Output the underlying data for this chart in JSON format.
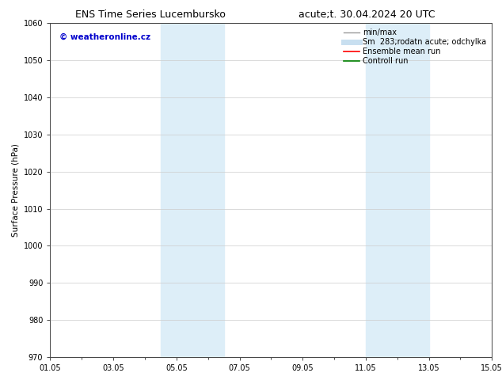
{
  "title_left": "ENS Time Series Lucembursko",
  "title_right": "acute;t. 30.04.2024 20 UTC",
  "ylabel": "Surface Pressure (hPa)",
  "ylim": [
    970,
    1060
  ],
  "yticks": [
    970,
    980,
    990,
    1000,
    1010,
    1020,
    1030,
    1040,
    1050,
    1060
  ],
  "xlim_start": 0.0,
  "xlim_end": 14.0,
  "xtick_positions": [
    0,
    2,
    4,
    6,
    8,
    10,
    12,
    14
  ],
  "xtick_labels": [
    "01.05",
    "03.05",
    "05.05",
    "07.05",
    "09.05",
    "11.05",
    "13.05",
    "15.05"
  ],
  "shaded_bands": [
    {
      "x_start": 3.5,
      "x_end": 5.5
    },
    {
      "x_start": 10.0,
      "x_end": 12.0
    }
  ],
  "shade_color": "#ddeef8",
  "watermark_text": "© weatheronline.cz",
  "watermark_color": "#0000cc",
  "legend_entries": [
    {
      "label": "min/max",
      "color": "#999999",
      "lw": 1.0,
      "ls": "-"
    },
    {
      "label": "Sm  283;rodatn acute; odchylka",
      "color": "#c8dff0",
      "lw": 5,
      "ls": "-"
    },
    {
      "label": "Ensemble mean run",
      "color": "#ff0000",
      "lw": 1.2,
      "ls": "-"
    },
    {
      "label": "Controll run",
      "color": "#008000",
      "lw": 1.2,
      "ls": "-"
    }
  ],
  "bg_color": "#ffffff",
  "grid_color": "#cccccc",
  "title_fontsize": 9,
  "axis_label_fontsize": 7.5,
  "tick_fontsize": 7,
  "legend_fontsize": 7,
  "watermark_fontsize": 7.5
}
